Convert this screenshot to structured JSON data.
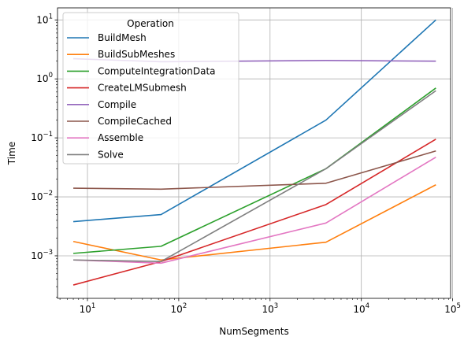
{
  "chart_data": {
    "type": "line",
    "xlabel": "NumSegments",
    "ylabel": "Time",
    "x_scale": "log",
    "y_scale": "log",
    "xlim": [
      4.7,
      95000
    ],
    "ylim": [
      0.00019,
      16
    ],
    "grid": true,
    "legend_title": "Operation",
    "legend_position": "upper-left",
    "x": [
      7,
      64,
      4096,
      65536
    ],
    "x_ticks": [
      {
        "value": 10,
        "base": "10",
        "exp": "1"
      },
      {
        "value": 100,
        "base": "10",
        "exp": "2"
      },
      {
        "value": 1000,
        "base": "10",
        "exp": "3"
      },
      {
        "value": 10000,
        "base": "10",
        "exp": "4"
      },
      {
        "value": 100000,
        "base": "10",
        "exp": "5"
      }
    ],
    "y_ticks": [
      {
        "value": 0.001,
        "base": "10",
        "exp": "−3"
      },
      {
        "value": 0.01,
        "base": "10",
        "exp": "−2"
      },
      {
        "value": 0.1,
        "base": "10",
        "exp": "−1"
      },
      {
        "value": 1,
        "base": "10",
        "exp": "0"
      },
      {
        "value": 10,
        "base": "10",
        "exp": "1"
      }
    ],
    "series": [
      {
        "name": "BuildMesh",
        "color": "#1f77b4",
        "values": [
          0.0038,
          0.005,
          0.2,
          10.0
        ]
      },
      {
        "name": "BuildSubMeshes",
        "color": "#ff7f0e",
        "values": [
          0.00175,
          0.00085,
          0.0017,
          0.016
        ]
      },
      {
        "name": "ComputeIntegrationData",
        "color": "#2ca02c",
        "values": [
          0.0011,
          0.00145,
          0.03,
          0.7
        ]
      },
      {
        "name": "CreateLMSubmesh",
        "color": "#d62728",
        "values": [
          0.00032,
          0.0008,
          0.0074,
          0.095
        ]
      },
      {
        "name": "Compile",
        "color": "#9467bd",
        "values": [
          2.2,
          1.95,
          2.05,
          2.0
        ]
      },
      {
        "name": "CompileCached",
        "color": "#8c564b",
        "values": [
          0.014,
          0.0135,
          0.017,
          0.06
        ]
      },
      {
        "name": "Assemble",
        "color": "#e377c2",
        "values": [
          0.00085,
          0.00075,
          0.0036,
          0.047
        ]
      },
      {
        "name": "Solve",
        "color": "#7f7f7f",
        "values": [
          0.00085,
          0.0008,
          0.03,
          0.63
        ]
      }
    ]
  }
}
